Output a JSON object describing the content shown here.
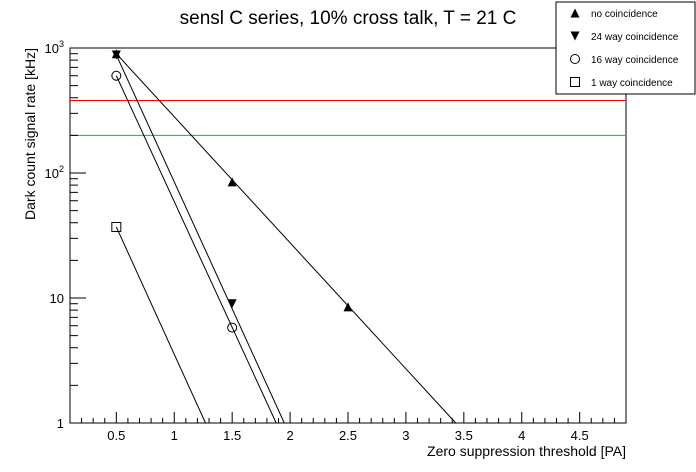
{
  "chart_data": {
    "type": "scatter",
    "title": "sensl C series, 10% cross talk, T = 21 C",
    "xlabel": "Zero suppression threshold [PA]",
    "ylabel": "Dark count signal rate [kHz]",
    "xlim": [
      0.1,
      4.9
    ],
    "ylim": [
      1,
      1000
    ],
    "yscale": "log",
    "grid": false,
    "legend_position": "top-right",
    "x_ticks": [
      0.5,
      1,
      1.5,
      2,
      2.5,
      3,
      3.5,
      4,
      4.5
    ],
    "x_tick_labels": [
      "0.5",
      "1",
      "1.5",
      "2",
      "2.5",
      "3",
      "3.5",
      "4",
      "4.5"
    ],
    "y_ticks": [
      1,
      10,
      100,
      1000
    ],
    "y_tick_labels": [
      "1",
      "10",
      "10²",
      "10³"
    ],
    "series": [
      {
        "name": "no coincidence",
        "marker": "triangle-up",
        "x": [
          0.5,
          1.5,
          2.5
        ],
        "y": [
          900,
          85,
          8.5
        ],
        "fit": {
          "x": [
            0.5,
            3.43
          ],
          "y": [
            900,
            1
          ]
        }
      },
      {
        "name": "24 way coincidence",
        "marker": "triangle-down",
        "x": [
          0.5,
          1.5
        ],
        "y": [
          880,
          9
        ],
        "fit": {
          "x": [
            0.5,
            1.95
          ],
          "y": [
            880,
            1
          ]
        }
      },
      {
        "name": "16 way coincidence",
        "marker": "circle-open",
        "x": [
          0.5,
          1.5
        ],
        "y": [
          600,
          5.8
        ],
        "fit": {
          "x": [
            0.5,
            1.88
          ],
          "y": [
            600,
            1
          ]
        }
      },
      {
        "name": "1 way coincidence",
        "marker": "square-open",
        "x": [
          0.5
        ],
        "y": [
          37
        ],
        "fit": {
          "x": [
            0.5,
            1.27
          ],
          "y": [
            37,
            1
          ]
        }
      }
    ],
    "reference_lines": [
      {
        "color": "#ff0000",
        "y": 380
      },
      {
        "color": "#00cc00",
        "y": 200
      }
    ]
  }
}
